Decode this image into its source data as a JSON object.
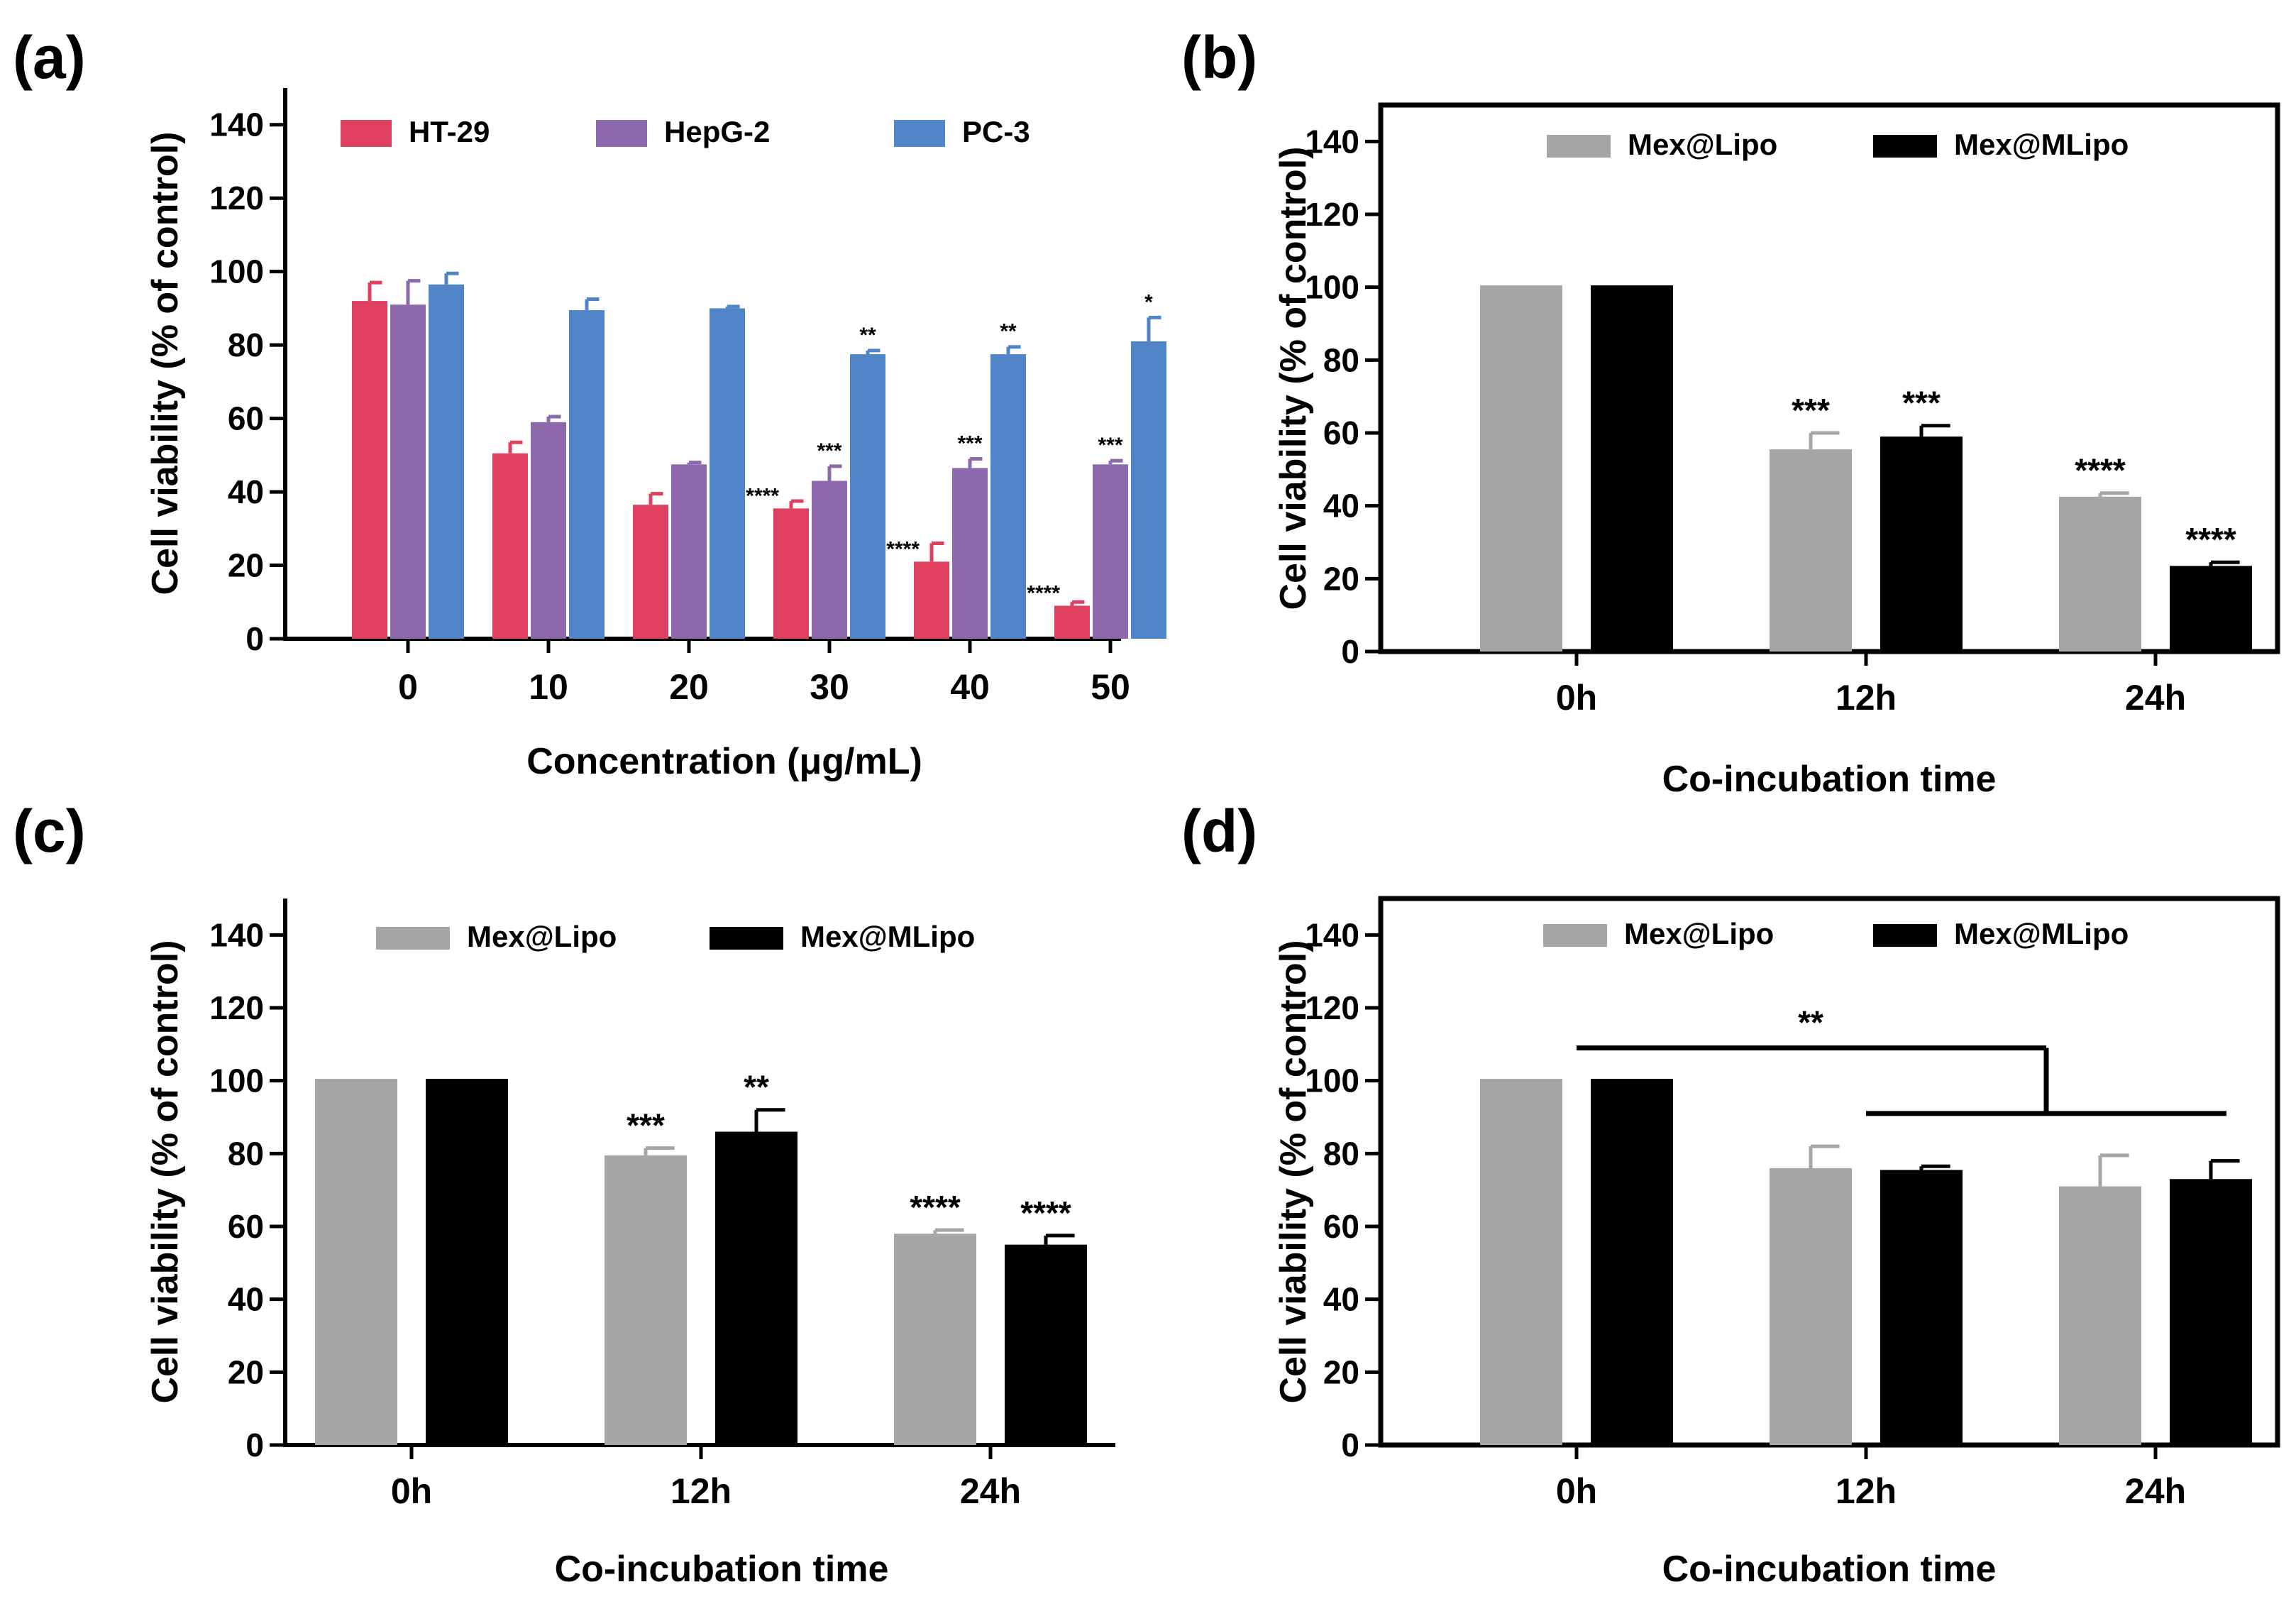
{
  "chart_data": [
    {
      "panel": "(a)",
      "type": "bar",
      "categories": [
        "0",
        "10",
        "20",
        "30",
        "40",
        "50"
      ],
      "series": [
        {
          "name": "HT-29",
          "color": "#e0405f",
          "values": [
            92,
            50.5,
            36.5,
            35.5,
            21,
            9
          ],
          "errors": [
            5,
            3,
            3,
            2,
            5,
            1
          ],
          "sig": [
            "",
            "",
            "",
            "****",
            "****",
            "****"
          ]
        },
        {
          "name": "HepG-2",
          "color": "#8e68ad",
          "values": [
            91,
            59,
            47.5,
            43,
            46.5,
            47.5
          ],
          "errors": [
            6.5,
            1.5,
            0.5,
            4,
            2.5,
            1
          ],
          "sig": [
            "",
            "",
            "",
            "***",
            "***",
            "***"
          ]
        },
        {
          "name": "PC-3",
          "color": "#5086c8",
          "values": [
            96.5,
            89.5,
            90,
            77.5,
            77.5,
            81
          ],
          "errors": [
            3,
            3,
            0.5,
            1,
            2,
            6.5
          ],
          "sig": [
            "",
            "",
            "",
            "**",
            "**",
            "*"
          ]
        }
      ],
      "ylim": [
        0,
        150
      ],
      "yticks": [
        "0",
        "20",
        "40",
        "60",
        "80",
        "100",
        "120",
        "140"
      ],
      "ylabel": "Cell viability (% of control)",
      "xlabel": "Concentration (μg/mL)",
      "legend": "top"
    },
    {
      "panel": "(b)",
      "type": "bar",
      "categories": [
        "0h",
        "12h",
        "24h"
      ],
      "series": [
        {
          "name": "Mex@Lipo",
          "color": "#a6a6a9",
          "values": [
            100.5,
            55.5,
            42.5
          ],
          "errors": [
            0,
            4.5,
            1
          ],
          "sig": [
            "",
            "***",
            "****"
          ]
        },
        {
          "name": "Mex@MLipo",
          "color": "#000000",
          "values": [
            100.5,
            59,
            23.5
          ],
          "errors": [
            0,
            3,
            1
          ],
          "sig": [
            "",
            "***",
            "****"
          ]
        }
      ],
      "ylim": [
        0,
        150
      ],
      "yticks": [
        "0",
        "20",
        "40",
        "60",
        "80",
        "100",
        "120",
        "140"
      ],
      "ylabel": "Cell viability (% of control)",
      "xlabel": "Co-incubation time",
      "legend": "top"
    },
    {
      "panel": "(c)",
      "type": "bar",
      "categories": [
        "0h",
        "12h",
        "24h"
      ],
      "series": [
        {
          "name": "Mex@Lipo",
          "color": "#a6a6a9",
          "values": [
            100.5,
            79.5,
            58
          ],
          "errors": [
            0,
            2,
            1
          ],
          "sig": [
            "",
            "***",
            "****"
          ]
        },
        {
          "name": "Mex@MLipo",
          "color": "#000000",
          "values": [
            100.5,
            86,
            55
          ],
          "errors": [
            0,
            6,
            2.5
          ],
          "sig": [
            "",
            "**",
            "****"
          ]
        }
      ],
      "ylim": [
        0,
        150
      ],
      "yticks": [
        "0",
        "20",
        "40",
        "60",
        "80",
        "100",
        "120",
        "140"
      ],
      "ylabel": "Cell viability (% of control)",
      "xlabel": "Co-incubation time",
      "legend": "top"
    },
    {
      "panel": "(d)",
      "type": "bar",
      "categories": [
        "0h",
        "12h",
        "24h"
      ],
      "series": [
        {
          "name": "Mex@Lipo",
          "color": "#a6a6a9",
          "values": [
            100.5,
            76,
            71
          ],
          "errors": [
            0,
            6,
            8.5
          ],
          "sig": [
            "",
            "",
            ""
          ]
        },
        {
          "name": "Mex@MLipo",
          "color": "#000000",
          "values": [
            100.5,
            75.5,
            73
          ],
          "errors": [
            0,
            1,
            5
          ],
          "sig": [
            "",
            "",
            ""
          ]
        }
      ],
      "ylim": [
        0,
        150
      ],
      "yticks": [
        "0",
        "20",
        "40",
        "60",
        "80",
        "100",
        "120",
        "140"
      ],
      "ylabel": "Cell viability (% of control)",
      "xlabel": "Co-incubation time",
      "legend": "top",
      "comparison": {
        "label": "**",
        "from_category": "0h",
        "to_categories": [
          "12h",
          "24h"
        ],
        "level": 109,
        "group_level": 91
      }
    }
  ]
}
